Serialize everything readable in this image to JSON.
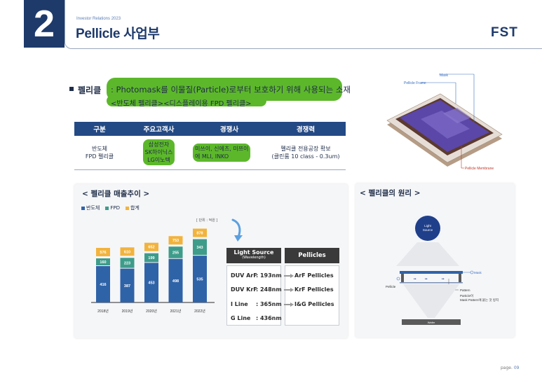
{
  "header": {
    "section_number": "2",
    "ir_label": "Investor Relations 2023",
    "title": "Pellicle 사업부",
    "logo": "FST"
  },
  "definition": {
    "term": "펠리클",
    "text": ": Photomask를 이물질(Particle)로부터 보호하기 위해 사용되는 소재",
    "subtitle": "<반도체 펠리클><디스플레이용 FPD 펠리클>"
  },
  "table": {
    "headers": [
      "구분",
      "주요고객사",
      "경쟁사",
      "경쟁력"
    ],
    "row": {
      "category": [
        "반도체",
        "FPD 펠리클"
      ],
      "customers": [
        "삼성전자",
        "SK하이닉스",
        "LG이노텍"
      ],
      "competitors": [
        "미쓰이, 신에츠, 미쯔이",
        "에 MLI, INKO"
      ],
      "competitiveness": [
        "펠리클 전용공장 확보",
        "(클린룸 10 class - 0.3um)"
      ]
    }
  },
  "diagram_labels": {
    "mask": "Mask",
    "pellicle_frame": "Pellicle Frame",
    "pellicle_membrane": "Pellicle Membrane"
  },
  "sales_panel": {
    "title": "< 펠리클 매출추이 >",
    "legend": [
      {
        "name": "반도체",
        "color": "#2f63a8"
      },
      {
        "name": "FPD",
        "color": "#3e9c8a"
      },
      {
        "name": "합계",
        "color": "#f2b33d"
      }
    ],
    "unit": "[ 단위 : 억원 ]"
  },
  "chart_data": {
    "type": "bar",
    "categories": [
      "2018년",
      "2019년",
      "2020년",
      "2021년",
      "2022년"
    ],
    "series": [
      {
        "name": "반도체",
        "values": [
          416,
          387,
          453,
          498,
          535
        ]
      },
      {
        "name": "FPD",
        "values": [
          160,
          223,
          199,
          255,
          343
        ]
      },
      {
        "name": "합계",
        "values": [
          576,
          610,
          652,
          753,
          878
        ]
      }
    ]
  },
  "wavelength": {
    "source_header": "Light Source",
    "source_sub": "(Wavelength)",
    "pellicle_header": "Pellicles",
    "rows": [
      {
        "source": "DUV ArF",
        "value": ": 193nm",
        "pellicle": "ArF Pellicles"
      },
      {
        "source": "DUV KrF",
        "value": ": 248nm",
        "pellicle": "KrF Pellicles"
      },
      {
        "source": "I Line",
        "value": ": 365nm",
        "pellicle": "I&G Pellicles"
      },
      {
        "source": "G Line",
        "value": ": 436nm",
        "pellicle": ""
      }
    ]
  },
  "principle_panel": {
    "title": "< 펠리클의 원리 >",
    "light_label": [
      "Light",
      "Source"
    ],
    "mask_label": "Mask",
    "pellicle_label": "Pellicle",
    "pattern_label": "Pattern",
    "particle_note": [
      "Particle이",
      "Mask Pattern에 붙는 것 방지"
    ],
    "wafer_label": "Wafer"
  },
  "footer": {
    "page_prefix": "page.",
    "page_number": "09"
  }
}
